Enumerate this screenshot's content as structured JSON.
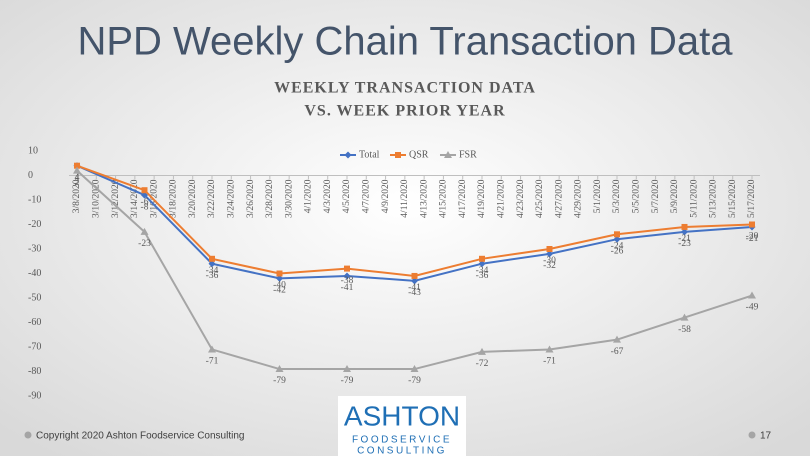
{
  "slide_title": "NPD Weekly Chain Transaction Data",
  "chart_data": {
    "type": "line",
    "title": [
      "WEEKLY TRANSACTION DATA",
      "VS. WEEK PRIOR YEAR"
    ],
    "x": [
      "3/8/2020",
      "3/15/2020",
      "3/22/2020",
      "3/29/2020",
      "4/5/2020",
      "4/12/2020",
      "4/19/2020",
      "4/26/2020",
      "5/3/2020",
      "5/10/2020",
      "5/17/2020"
    ],
    "xlim": [
      "3/8/2020",
      "5/17/2020"
    ],
    "xticks": [
      "3/8/2020",
      "3/10/2020",
      "3/12/2020",
      "3/14/2020",
      "3/16/2020",
      "3/18/2020",
      "3/20/2020",
      "3/22/2020",
      "3/24/2020",
      "3/26/2020",
      "3/28/2020",
      "3/30/2020",
      "4/1/2020",
      "4/3/2020",
      "4/5/2020",
      "4/7/2020",
      "4/9/2020",
      "4/11/2020",
      "4/13/2020",
      "4/15/2020",
      "4/17/2020",
      "4/19/2020",
      "4/21/2020",
      "4/23/2020",
      "4/25/2020",
      "4/27/2020",
      "4/29/2020",
      "5/1/2020",
      "5/3/2020",
      "5/5/2020",
      "5/7/2020",
      "5/9/2020",
      "5/11/2020",
      "5/13/2020",
      "5/15/2020",
      "5/17/2020"
    ],
    "series": [
      {
        "name": "Total",
        "color": "#4472c4",
        "marker": "diamond",
        "values": [
          4,
          -8,
          -36,
          -42,
          -41,
          -43,
          -36,
          -32,
          -26,
          -23,
          -21
        ]
      },
      {
        "name": "QSR",
        "color": "#ed7d31",
        "marker": "square",
        "values": [
          4,
          -6,
          -34,
          -40,
          -38,
          -41,
          -34,
          -30,
          -24,
          -21,
          -20
        ]
      },
      {
        "name": "FSR",
        "color": "#a5a5a5",
        "marker": "triangle",
        "values": [
          2,
          -23,
          -71,
          -79,
          -79,
          -79,
          -72,
          -71,
          -67,
          -58,
          -49
        ]
      }
    ],
    "ylim": [
      -90,
      10
    ],
    "yticks": [
      10,
      0,
      -10,
      -20,
      -30,
      -40,
      -50,
      -60,
      -70,
      -80,
      -90
    ],
    "legend": "top"
  },
  "footer": {
    "copyright": "Copyright 2020 Ashton Foodservice Consulting",
    "page": "17"
  },
  "logo": {
    "name": "ASHTON",
    "line1": "FOODSERVICE",
    "line2": "CONSULTING"
  }
}
